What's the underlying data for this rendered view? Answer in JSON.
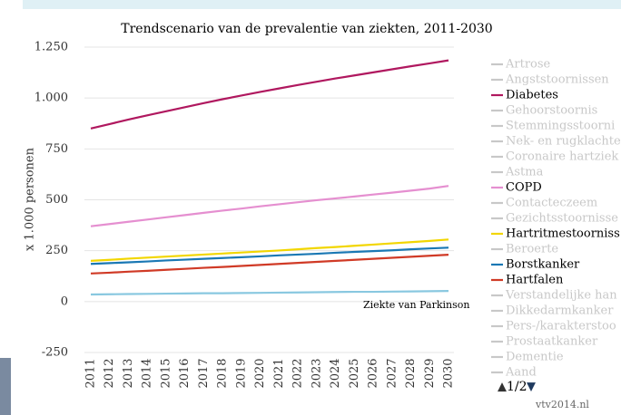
{
  "chart_data": {
    "type": "line",
    "title": "Trendscenario van de prevalentie van ziekten, 2011-2030",
    "y_label": "x 1.000 personen",
    "categories": [
      "2011",
      "2012",
      "2013",
      "2014",
      "2015",
      "2016",
      "2017",
      "2018",
      "2019",
      "2020",
      "2021",
      "2022",
      "2023",
      "2024",
      "2025",
      "2026",
      "2027",
      "2028",
      "2029",
      "2030"
    ],
    "ylim": [
      -250,
      1250
    ],
    "yticks": [
      -250,
      0,
      250,
      500,
      750,
      {
        "value": 1000,
        "label": "1.000"
      },
      {
        "value": 1250,
        "label": "1.250"
      }
    ],
    "grid": true,
    "series": [
      {
        "name": "Diabetes",
        "color": "#b0185f",
        "values": [
          850,
          872,
          894,
          915,
          935,
          955,
          975,
          994,
          1012,
          1030,
          1047,
          1064,
          1080,
          1096,
          1111,
          1126,
          1141,
          1156,
          1170,
          1185
        ]
      },
      {
        "name": "COPD",
        "color": "#e58fd0",
        "values": [
          370,
          381,
          392,
          403,
          414,
          425,
          436,
          447,
          457,
          468,
          478,
          488,
          498,
          507,
          516,
          526,
          535,
          545,
          555,
          568
        ]
      },
      {
        "name": "Hartritmestoorniss",
        "color": "#f2d600",
        "values": [
          200,
          205,
          211,
          216,
          221,
          226,
          231,
          236,
          241,
          246,
          251,
          257,
          263,
          268,
          274,
          280,
          286,
          292,
          298,
          305
        ]
      },
      {
        "name": "Borstkanker",
        "color": "#1a78b4",
        "values": [
          185,
          189,
          193,
          197,
          202,
          206,
          210,
          214,
          218,
          222,
          227,
          231,
          235,
          240,
          244,
          248,
          252,
          257,
          261,
          265
        ]
      },
      {
        "name": "Hartfalen",
        "color": "#d03a26",
        "values": [
          138,
          142,
          147,
          151,
          156,
          161,
          166,
          170,
          175,
          180,
          185,
          190,
          195,
          200,
          205,
          210,
          215,
          220,
          225,
          230
        ]
      },
      {
        "name": "Ziekte van Parkinson",
        "color": "#89c8e0",
        "values": [
          35,
          36,
          37,
          38,
          39,
          40,
          41,
          41,
          42,
          43,
          44,
          45,
          46,
          47,
          48,
          48,
          49,
          50,
          51,
          52
        ]
      }
    ],
    "legend": [
      "Artrose",
      "Angststoornissen",
      "Diabetes",
      "Gehoorstoornis",
      "Stemmingsstoorni",
      "Nek- en rugklachte",
      "Coronaire hartziek",
      "Astma",
      "COPD",
      "Contacteczeem",
      "Gezichtsstoornisse",
      "Hartritmestoorniss",
      "Beroerte",
      "Borstkanker",
      "Hartfalen",
      "Verstandelijke han",
      "Dikkedarmkanker",
      "Pers-/karakterstoo",
      "Prostaatkanker",
      "Dementie",
      "Aand"
    ],
    "legend_inactive_color": "#c8c8c8",
    "pager": "1/2",
    "source": "vtv2014.nl"
  }
}
